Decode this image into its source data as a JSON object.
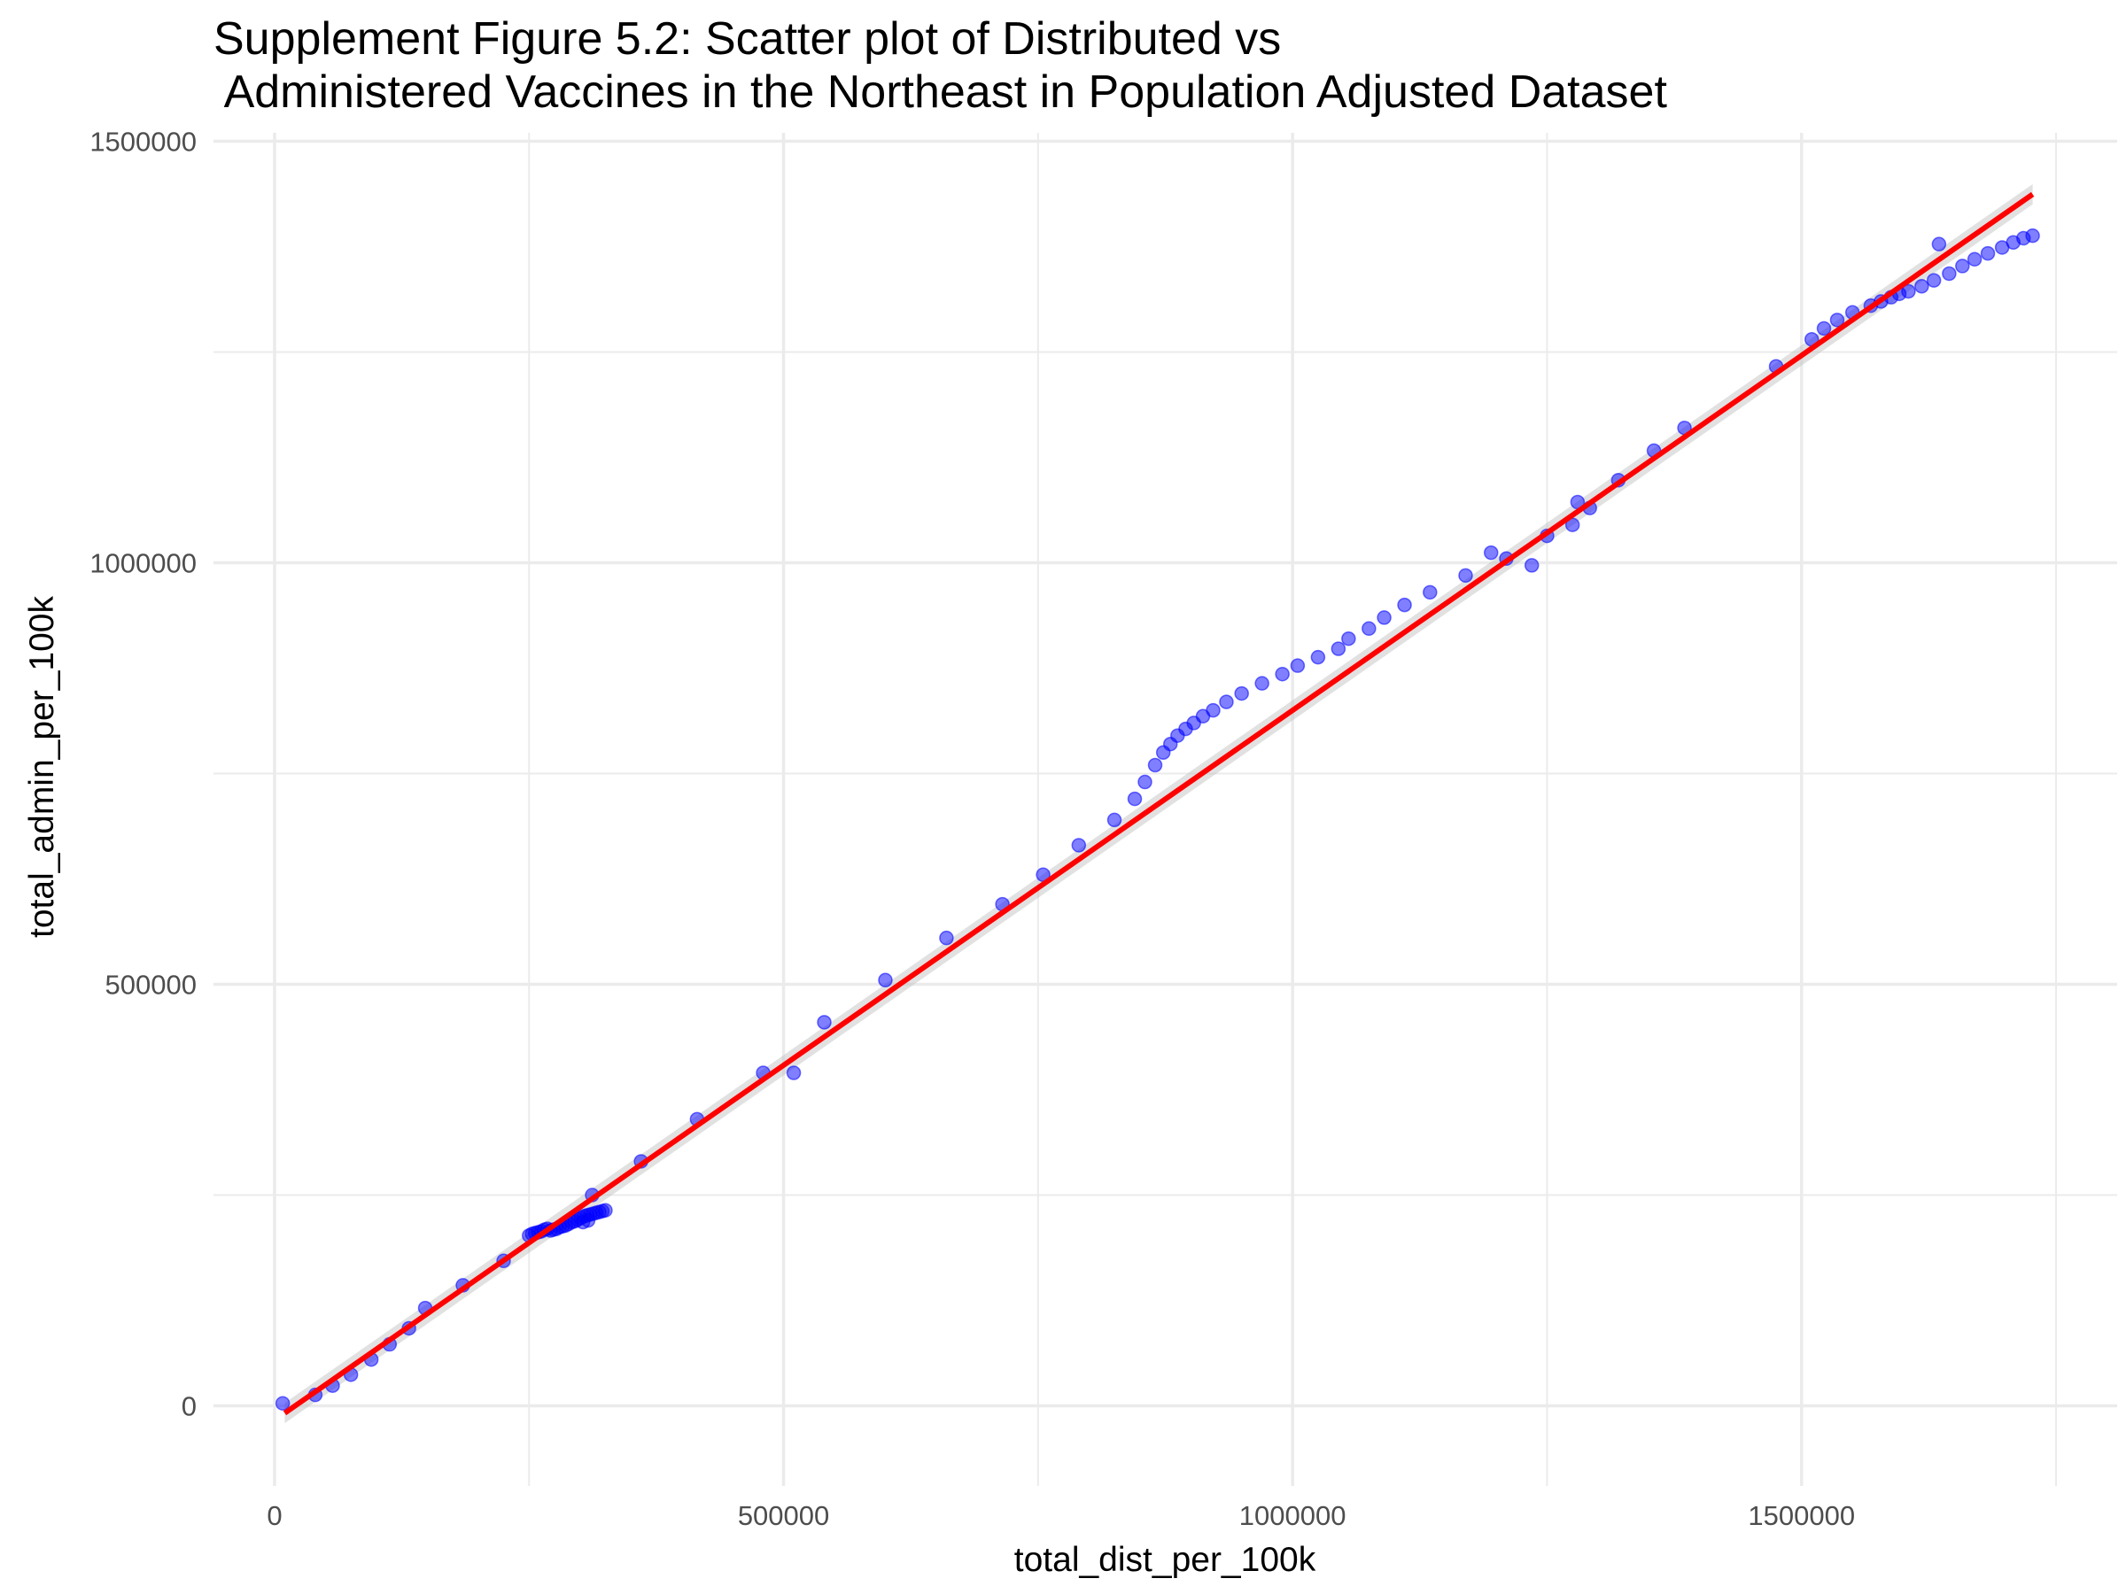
{
  "chart_data": {
    "type": "scatter",
    "title_line1": "Supplement Figure 5.2: Scatter plot of Distributed vs",
    "title_line2": " Administered Vaccines in the Northeast in Population Adjusted Dataset",
    "xlabel": "total_dist_per_100k",
    "ylabel": "total_admin_per_100k",
    "xlim": [
      -60000,
      1810000
    ],
    "ylim": [
      -95000,
      1510000
    ],
    "x_ticks": [
      0,
      500000,
      1000000,
      1500000
    ],
    "x_tick_labels": [
      "0",
      "500000",
      "1000000",
      "1500000"
    ],
    "y_ticks": [
      0,
      500000,
      1000000,
      1500000
    ],
    "y_tick_labels": [
      "0",
      "500000",
      "1000000",
      "1500000"
    ],
    "grid": true,
    "colors": {
      "points": "#0000ff",
      "fit_line": "#ff0000",
      "grid": "#ebebeb",
      "confidence_band": "#bdbdbd"
    },
    "points": [
      [
        8000,
        3000
      ],
      [
        40000,
        13000
      ],
      [
        57000,
        24000
      ],
      [
        75000,
        37000
      ],
      [
        95000,
        55000
      ],
      [
        113000,
        73000
      ],
      [
        132000,
        92000
      ],
      [
        148000,
        116000
      ],
      [
        185000,
        143000
      ],
      [
        225000,
        172000
      ],
      [
        250000,
        202000
      ],
      [
        253000,
        204000
      ],
      [
        256000,
        205000
      ],
      [
        259000,
        206000
      ],
      [
        262000,
        207000
      ],
      [
        265000,
        209000
      ],
      [
        268000,
        210000
      ],
      [
        271000,
        208000
      ],
      [
        274000,
        209000
      ],
      [
        277000,
        210000
      ],
      [
        280000,
        212000
      ],
      [
        283000,
        213000
      ],
      [
        286000,
        214000
      ],
      [
        289000,
        216000
      ],
      [
        292000,
        218000
      ],
      [
        295000,
        219000
      ],
      [
        298000,
        221000
      ],
      [
        301000,
        223000
      ],
      [
        304000,
        225000
      ],
      [
        307000,
        226000
      ],
      [
        310000,
        227000
      ],
      [
        313000,
        228000
      ],
      [
        316000,
        229000
      ],
      [
        319000,
        230000
      ],
      [
        322000,
        231000
      ],
      [
        325000,
        232000
      ],
      [
        303000,
        218000
      ],
      [
        308000,
        220000
      ],
      [
        312000,
        250000
      ],
      [
        360000,
        290000
      ],
      [
        415000,
        340000
      ],
      [
        480000,
        395000
      ],
      [
        510000,
        395000
      ],
      [
        540000,
        455000
      ],
      [
        600000,
        505000
      ],
      [
        660000,
        555000
      ],
      [
        715000,
        595000
      ],
      [
        755000,
        630000
      ],
      [
        790000,
        665000
      ],
      [
        825000,
        695000
      ],
      [
        845000,
        720000
      ],
      [
        855000,
        740000
      ],
      [
        865000,
        760000
      ],
      [
        873000,
        775000
      ],
      [
        880000,
        785000
      ],
      [
        887000,
        795000
      ],
      [
        895000,
        803000
      ],
      [
        903000,
        810000
      ],
      [
        912000,
        818000
      ],
      [
        922000,
        825000
      ],
      [
        935000,
        835000
      ],
      [
        950000,
        845000
      ],
      [
        970000,
        857000
      ],
      [
        990000,
        868000
      ],
      [
        1005000,
        878000
      ],
      [
        1025000,
        888000
      ],
      [
        1045000,
        898000
      ],
      [
        1055000,
        910000
      ],
      [
        1075000,
        922000
      ],
      [
        1090000,
        935000
      ],
      [
        1110000,
        950000
      ],
      [
        1135000,
        965000
      ],
      [
        1170000,
        985000
      ],
      [
        1195000,
        1012000
      ],
      [
        1210000,
        1005000
      ],
      [
        1235000,
        997000
      ],
      [
        1250000,
        1032000
      ],
      [
        1275000,
        1045000
      ],
      [
        1280000,
        1072000
      ],
      [
        1292000,
        1065000
      ],
      [
        1320000,
        1098000
      ],
      [
        1355000,
        1133000
      ],
      [
        1385000,
        1160000
      ],
      [
        1475000,
        1233000
      ],
      [
        1510000,
        1265000
      ],
      [
        1522000,
        1278000
      ],
      [
        1535000,
        1288000
      ],
      [
        1550000,
        1297000
      ],
      [
        1568000,
        1305000
      ],
      [
        1578000,
        1310000
      ],
      [
        1588000,
        1315000
      ],
      [
        1596000,
        1319000
      ],
      [
        1605000,
        1322000
      ],
      [
        1618000,
        1328000
      ],
      [
        1630000,
        1335000
      ],
      [
        1635000,
        1378000
      ],
      [
        1645000,
        1343000
      ],
      [
        1658000,
        1352000
      ],
      [
        1670000,
        1360000
      ],
      [
        1683000,
        1367000
      ],
      [
        1697000,
        1374000
      ],
      [
        1708000,
        1380000
      ],
      [
        1718000,
        1385000
      ],
      [
        1727000,
        1388000
      ]
    ],
    "fit_line": {
      "slope": 0.842,
      "intercept": -17000,
      "x_range": [
        10000,
        1727000
      ]
    }
  }
}
